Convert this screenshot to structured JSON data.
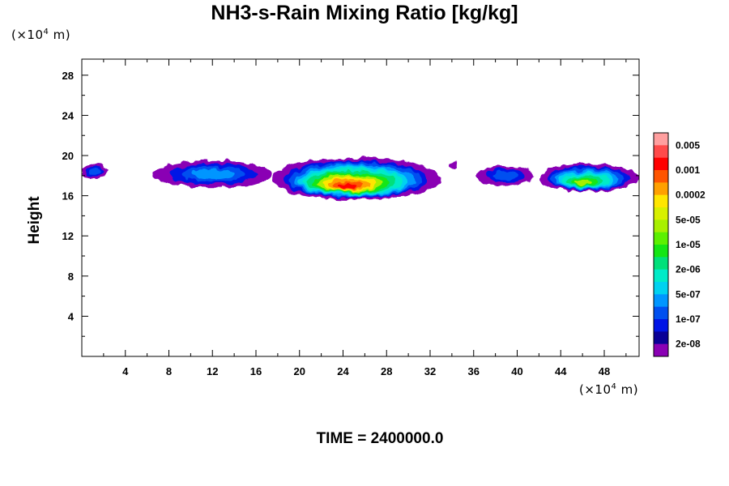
{
  "title": "NH3-s-Rain Mixing Ratio [kg/kg]",
  "y_unit": {
    "prefix": "(×10",
    "exp": "4",
    "suffix": " m)"
  },
  "x_unit": {
    "prefix": "(×10",
    "exp": "4",
    "suffix": " m)"
  },
  "time_label": "TIME = 2400000.0",
  "chart_data": {
    "type": "heatmap",
    "title": "NH3-s-Rain Mixing Ratio [kg/kg]",
    "xlabel": "",
    "ylabel": "Height",
    "x_unit": "×10^4 m",
    "y_unit": "×10^4 m",
    "xlim": [
      0,
      51.2
    ],
    "ylim": [
      0,
      29.6
    ],
    "x_ticks": [
      4,
      8,
      12,
      16,
      20,
      24,
      28,
      32,
      36,
      40,
      44,
      48
    ],
    "y_ticks": [
      4,
      8,
      12,
      16,
      20,
      24,
      28
    ],
    "colorbar": {
      "levels_labeled": [
        "0.005",
        "0.001",
        "0.0002",
        "5e-05",
        "1e-05",
        "2e-06",
        "5e-07",
        "1e-07",
        "2e-08"
      ],
      "colors": [
        "#ff9f9f",
        "#ff4a4a",
        "#ff0000",
        "#ff5500",
        "#ffa000",
        "#ffe600",
        "#d8f000",
        "#a8f000",
        "#5cf000",
        "#14e614",
        "#00e07a",
        "#00ebc8",
        "#00d2f0",
        "#0096ff",
        "#0050f0",
        "#0014e6",
        "#0a0096",
        "#8a00b4"
      ]
    },
    "regions": [
      {
        "level": "2e-08..1e-07",
        "x_range": [
          0.0,
          2.4
        ],
        "y_range": [
          17.7,
          19.2
        ]
      },
      {
        "level": "2e-08..5e-07",
        "x_range": [
          6.5,
          17.5
        ],
        "y_range": [
          16.8,
          19.5
        ]
      },
      {
        "level": "2e-08..0.001",
        "x_range": [
          17.5,
          33.0
        ],
        "y_range": [
          15.6,
          19.8
        ]
      },
      {
        "level": "2e-08",
        "x_range": [
          33.8,
          34.6
        ],
        "y_range": [
          18.8,
          19.4
        ]
      },
      {
        "level": "2e-08..1e-07",
        "x_range": [
          36.3,
          41.5
        ],
        "y_range": [
          17.0,
          19.0
        ]
      },
      {
        "level": "2e-08..5e-05",
        "x_range": [
          42.0,
          51.2
        ],
        "y_range": [
          16.4,
          19.2
        ]
      }
    ],
    "grid": false,
    "legend": "right"
  }
}
